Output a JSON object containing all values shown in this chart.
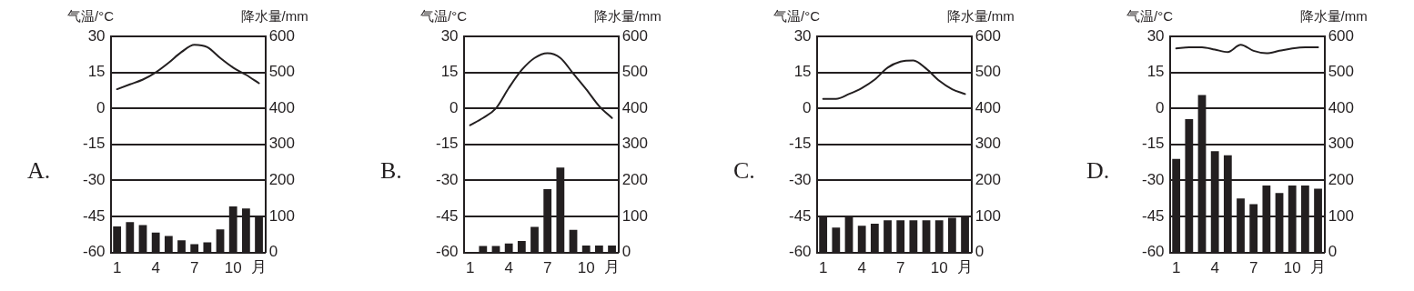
{
  "chart_data": [
    {
      "type": "bar",
      "title": "A.",
      "ylabel": "气温/°C",
      "y2label": "降水量/mm",
      "xlabel": "月",
      "categories": [
        "1",
        null,
        null,
        "4",
        null,
        null,
        "7",
        null,
        null,
        "10",
        null,
        null
      ],
      "ylim": [
        -60,
        30
      ],
      "yticks": [
        -60,
        -45,
        -30,
        -15,
        0,
        15,
        30
      ],
      "y2lim": [
        0,
        600
      ],
      "y2ticks": [
        0,
        100,
        200,
        300,
        400,
        500,
        600
      ],
      "grid": "y",
      "legend": false,
      "marker": "none",
      "series": [
        {
          "axis": "y2",
          "color": "#231f20",
          "values": [
            72,
            84,
            76,
            55,
            46,
            34,
            23,
            28,
            64,
            128,
            122,
            101
          ]
        },
        {
          "type": "line",
          "axis": "y",
          "color": "#231f20",
          "values": [
            8,
            10,
            12,
            15,
            19,
            23.5,
            26.5,
            25.5,
            21,
            17,
            14,
            10.5
          ]
        }
      ]
    },
    {
      "type": "bar",
      "title": "B.",
      "ylabel": "气温/°C",
      "y2label": "降水量/mm",
      "xlabel": "月",
      "categories": [
        "1",
        null,
        null,
        "4",
        null,
        null,
        "7",
        null,
        null,
        "10",
        null,
        null
      ],
      "ylim": [
        -60,
        30
      ],
      "yticks": [
        -60,
        -45,
        -30,
        -15,
        0,
        15,
        30
      ],
      "y2lim": [
        0,
        600
      ],
      "y2ticks": [
        0,
        100,
        200,
        300,
        400,
        500,
        600
      ],
      "grid": "y",
      "legend": false,
      "marker": "none",
      "series": [
        {
          "axis": "y2",
          "color": "#231f20",
          "values": [
            0,
            18,
            18,
            25,
            32,
            71,
            176,
            236,
            63,
            19,
            19,
            19
          ]
        },
        {
          "type": "line",
          "axis": "y",
          "color": "#231f20",
          "values": [
            -7,
            -4,
            0,
            8.5,
            16,
            21,
            23,
            21,
            14.5,
            8,
            1,
            -4
          ]
        }
      ]
    },
    {
      "type": "bar",
      "title": "C.",
      "ylabel": "气温/°C",
      "y2label": "降水量/mm",
      "xlabel": "月",
      "categories": [
        "1",
        null,
        null,
        "4",
        null,
        null,
        "7",
        null,
        null,
        "10",
        null,
        null
      ],
      "ylim": [
        -60,
        30
      ],
      "yticks": [
        -60,
        -45,
        -30,
        -15,
        0,
        15,
        30
      ],
      "y2lim": [
        0,
        600
      ],
      "y2ticks": [
        0,
        100,
        200,
        300,
        400,
        500,
        600
      ],
      "grid": "y",
      "legend": false,
      "marker": "none",
      "series": [
        {
          "axis": "y2",
          "color": "#231f20",
          "values": [
            100,
            69,
            100,
            74,
            80,
            89,
            89,
            89,
            89,
            89,
            96,
            100
          ]
        },
        {
          "type": "line",
          "axis": "y",
          "color": "#231f20",
          "values": [
            4,
            4,
            6,
            8.5,
            12,
            17,
            19.5,
            20,
            16.5,
            11.5,
            8,
            6
          ]
        }
      ]
    },
    {
      "type": "bar",
      "title": "D.",
      "ylabel": "气温/°C",
      "y2label": "降水量/mm",
      "xlabel": "月",
      "categories": [
        "1",
        null,
        null,
        "4",
        null,
        null,
        "7",
        null,
        null,
        "10",
        null,
        null
      ],
      "ylim": [
        -60,
        30
      ],
      "yticks": [
        -60,
        -45,
        -30,
        -15,
        0,
        15,
        30
      ],
      "y2lim": [
        0,
        600
      ],
      "y2ticks": [
        0,
        100,
        200,
        300,
        400,
        500,
        600
      ],
      "grid": "y",
      "legend": false,
      "marker": "none",
      "series": [
        {
          "axis": "y2",
          "color": "#231f20",
          "values": [
            260,
            370,
            437,
            281,
            270,
            150,
            134,
            186,
            165,
            186,
            186,
            177
          ]
        },
        {
          "type": "line",
          "axis": "y",
          "color": "#231f20",
          "values": [
            25,
            25.5,
            25.5,
            24.5,
            23.5,
            26.5,
            24,
            23,
            24,
            25,
            25.5,
            25.5
          ]
        }
      ]
    }
  ]
}
